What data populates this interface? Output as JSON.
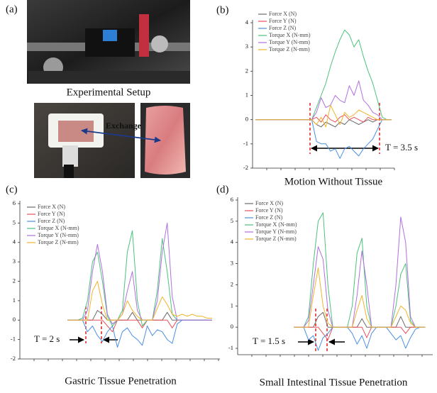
{
  "panel_a": {
    "label": "(a)",
    "caption": "Experimental Setup",
    "exchange": "Exchange"
  },
  "chart_data": [
    {
      "type": "line",
      "label": "(b)",
      "caption": "Motion Without Tissue",
      "annotation": "T = 3.5 s",
      "ylim": [
        -2,
        4
      ],
      "yticks": [
        -2,
        -1,
        0,
        1,
        2,
        3,
        4
      ],
      "series": [
        {
          "name": "Force X (N)",
          "color": "#6b6b6b",
          "values": [
            0,
            0,
            0,
            0,
            0,
            0,
            0,
            0,
            0,
            0,
            0,
            0,
            0,
            -0.2,
            -0.3,
            -0.1,
            -0.2,
            -0.3,
            -0.1,
            -0.2,
            0,
            -0.1,
            -0.2,
            -0.1,
            0,
            -0.1,
            0,
            0,
            0,
            0
          ]
        },
        {
          "name": "Force Y (N)",
          "color": "#e8505a",
          "values": [
            0,
            0,
            0,
            0,
            0,
            0,
            0,
            0,
            0,
            0,
            0,
            0,
            0,
            0.1,
            -0.1,
            0.2,
            0,
            -0.1,
            0.1,
            0.2,
            0,
            0.1,
            0,
            -0.1,
            0.1,
            0,
            0,
            0,
            0,
            0
          ]
        },
        {
          "name": "Force Z (N)",
          "color": "#4a90e2",
          "values": [
            0,
            0,
            0,
            0,
            0,
            0,
            0,
            0,
            0,
            0,
            0,
            0,
            0,
            -0.9,
            -1.0,
            -1.0,
            -1.3,
            -1.2,
            -1.6,
            -1.2,
            -1.1,
            -1.3,
            -1.5,
            -1.2,
            -1.0,
            -0.8,
            -0.4,
            0,
            0,
            0
          ]
        },
        {
          "name": "Torque X (N-mm)",
          "color": "#4cc27c",
          "values": [
            0,
            0,
            0,
            0,
            0,
            0,
            0,
            0,
            0,
            0,
            0,
            0,
            0,
            0.5,
            1.0,
            1.5,
            2.2,
            2.8,
            3.3,
            3.7,
            3.5,
            3.0,
            3.3,
            2.6,
            2.0,
            1.5,
            0.8,
            0.1,
            0,
            0
          ]
        },
        {
          "name": "Torque Y (N-mm)",
          "color": "#b070e0",
          "values": [
            0,
            0,
            0,
            0,
            0,
            0,
            0,
            0,
            0,
            0,
            0,
            0,
            0,
            0.3,
            0.9,
            0.5,
            0.6,
            1.0,
            0.8,
            0.7,
            1.4,
            1.0,
            1.6,
            0.8,
            0.6,
            0.3,
            0.2,
            0,
            0,
            0
          ]
        },
        {
          "name": "Torque Z (N-mm)",
          "color": "#f0b428",
          "values": [
            0,
            0,
            0,
            0,
            0,
            0,
            0,
            0,
            0,
            0,
            0,
            0,
            0,
            -0.2,
            0.1,
            -0.3,
            0.6,
            0.2,
            -0.2,
            0.3,
            0.1,
            0.2,
            0.4,
            0.3,
            0.2,
            0.1,
            0,
            0,
            0,
            0
          ]
        }
      ]
    },
    {
      "type": "line",
      "label": "(c)",
      "caption": "Gastric Tissue Penetration",
      "annotation": "T = 2 s",
      "ylim": [
        -2,
        6
      ],
      "yticks": [
        -2,
        -1,
        0,
        1,
        2,
        3,
        4,
        5,
        6
      ],
      "series": [
        {
          "name": "Force X (N)",
          "color": "#6b6b6b",
          "values": [
            null,
            null,
            null,
            null,
            null,
            null,
            null,
            null,
            null,
            0,
            0,
            0,
            0,
            0,
            0,
            0.5,
            0.3,
            0,
            0,
            0,
            0,
            0,
            0.4,
            0,
            0,
            0,
            0,
            0,
            0,
            0.4,
            0,
            0,
            0,
            0,
            0,
            0,
            0,
            0,
            0,
            null
          ]
        },
        {
          "name": "Force Y (N)",
          "color": "#e8505a",
          "values": [
            null,
            null,
            null,
            null,
            null,
            null,
            null,
            null,
            null,
            0,
            0,
            0,
            0,
            0,
            0,
            0,
            0,
            -0.3,
            -0.6,
            0,
            0,
            0,
            0,
            0,
            -0.4,
            0,
            0,
            0,
            0,
            0,
            -0.4,
            0,
            0,
            0,
            0,
            0,
            0,
            0,
            0,
            null
          ]
        },
        {
          "name": "Force Z (N)",
          "color": "#4a90e2",
          "values": [
            null,
            null,
            null,
            null,
            null,
            null,
            null,
            null,
            null,
            0,
            0,
            0,
            0,
            -0.6,
            -0.3,
            -0.8,
            -1.1,
            -0.6,
            -0.3,
            -1.4,
            -0.6,
            -0.4,
            -0.8,
            -1.0,
            -1.3,
            -0.3,
            -0.8,
            -0.5,
            -0.6,
            -1.0,
            -1.2,
            -0.2,
            0,
            0,
            0,
            0,
            0,
            0,
            0,
            null
          ]
        },
        {
          "name": "Torque X (N-mm)",
          "color": "#4cc27c",
          "values": [
            null,
            null,
            null,
            null,
            null,
            null,
            null,
            null,
            null,
            0,
            0,
            0,
            0.1,
            1.0,
            3.0,
            3.5,
            2.0,
            0.2,
            -0.3,
            0,
            0.5,
            3.5,
            4.6,
            1.0,
            -0.3,
            0,
            0,
            1.5,
            4.2,
            2.5,
            0.3,
            0,
            0,
            0,
            0,
            0,
            0,
            0,
            0,
            null
          ]
        },
        {
          "name": "Torque Y (N-mm)",
          "color": "#b070e0",
          "values": [
            null,
            null,
            null,
            null,
            null,
            null,
            null,
            null,
            null,
            0,
            0,
            0,
            0,
            0.5,
            2.5,
            3.9,
            2.5,
            0.3,
            -0.2,
            0,
            0.3,
            1.5,
            2.5,
            0.5,
            0,
            0,
            0,
            1.0,
            3.5,
            5.0,
            1.2,
            0,
            0,
            0,
            0,
            0,
            0,
            0,
            0,
            null
          ]
        },
        {
          "name": "Torque Z (N-mm)",
          "color": "#f0b428",
          "values": [
            null,
            null,
            null,
            null,
            null,
            null,
            null,
            null,
            null,
            0,
            0,
            0,
            0,
            0,
            1.5,
            2.0,
            0.8,
            0,
            0,
            0,
            0.3,
            1.0,
            0.5,
            0.2,
            0,
            0,
            0,
            0.6,
            1.2,
            0.8,
            0.3,
            0.2,
            0.3,
            0.2,
            0.3,
            0.2,
            0.2,
            0.1,
            0.1,
            null
          ]
        }
      ]
    },
    {
      "type": "line",
      "label": "(d)",
      "caption": "Small Intestinal Tissue Penetration",
      "annotation": "T = 1.5 s",
      "ylim": [
        -1.3,
        6
      ],
      "yticks": [
        -1,
        0,
        1,
        2,
        3,
        4,
        5,
        6
      ],
      "series": [
        {
          "name": "Force X (N)",
          "color": "#6b6b6b",
          "values": [
            null,
            null,
            null,
            null,
            null,
            null,
            null,
            null,
            null,
            null,
            null,
            0,
            0,
            0,
            0,
            0,
            0.5,
            0.7,
            0,
            0,
            0,
            0,
            0,
            0,
            0,
            0.4,
            0,
            0,
            0,
            0,
            0,
            0,
            0,
            0.5,
            0,
            0,
            0,
            0,
            0,
            null
          ]
        },
        {
          "name": "Force Y (N)",
          "color": "#e8505a",
          "values": [
            null,
            null,
            null,
            null,
            null,
            null,
            null,
            null,
            null,
            null,
            null,
            0,
            0,
            0,
            0,
            0,
            0,
            -0.3,
            -0.6,
            0,
            0,
            0,
            0,
            0,
            0,
            0,
            -0.5,
            0,
            0,
            0,
            0,
            0,
            0,
            0,
            -0.3,
            0,
            0,
            0,
            0,
            null
          ]
        },
        {
          "name": "Force Z (N)",
          "color": "#4a90e2",
          "values": [
            null,
            null,
            null,
            null,
            null,
            null,
            null,
            null,
            null,
            null,
            null,
            0,
            0,
            0,
            -0.6,
            -0.4,
            -1.1,
            -0.5,
            -0.3,
            0,
            0,
            0,
            0,
            -0.3,
            -0.8,
            -0.4,
            -1.0,
            -0.3,
            0,
            0,
            0,
            -0.3,
            -0.6,
            -0.4,
            -1.0,
            -0.5,
            -0.1,
            0,
            0,
            null
          ]
        },
        {
          "name": "Torque X (N-mm)",
          "color": "#4cc27c",
          "values": [
            null,
            null,
            null,
            null,
            null,
            null,
            null,
            null,
            null,
            null,
            null,
            0,
            0,
            0,
            0.5,
            3.0,
            5.0,
            5.4,
            2.0,
            0,
            0,
            0,
            0,
            1.0,
            3.5,
            4.2,
            1.0,
            0,
            0,
            0,
            0,
            0,
            1.0,
            2.5,
            3.0,
            0.3,
            0,
            0,
            0,
            null
          ]
        },
        {
          "name": "Torque Y (N-mm)",
          "color": "#b070e0",
          "values": [
            null,
            null,
            null,
            null,
            null,
            null,
            null,
            null,
            null,
            null,
            null,
            0,
            0,
            0,
            0.3,
            2.0,
            3.8,
            3.2,
            0.8,
            0,
            0,
            0,
            0,
            0,
            1.5,
            3.6,
            2.0,
            0,
            0,
            0,
            0,
            0,
            2.0,
            5.2,
            4.0,
            0.5,
            0,
            0,
            0,
            null
          ]
        },
        {
          "name": "Torque Z (N-mm)",
          "color": "#f0b428",
          "values": [
            null,
            null,
            null,
            null,
            null,
            null,
            null,
            null,
            null,
            null,
            null,
            0,
            0,
            0,
            0,
            1.5,
            2.8,
            1.0,
            0.2,
            0,
            0,
            0,
            0,
            0,
            0.8,
            1.5,
            0.4,
            0,
            0,
            0,
            0,
            0,
            0.5,
            1.0,
            0.8,
            0.2,
            0,
            0,
            0,
            null
          ]
        }
      ]
    }
  ]
}
